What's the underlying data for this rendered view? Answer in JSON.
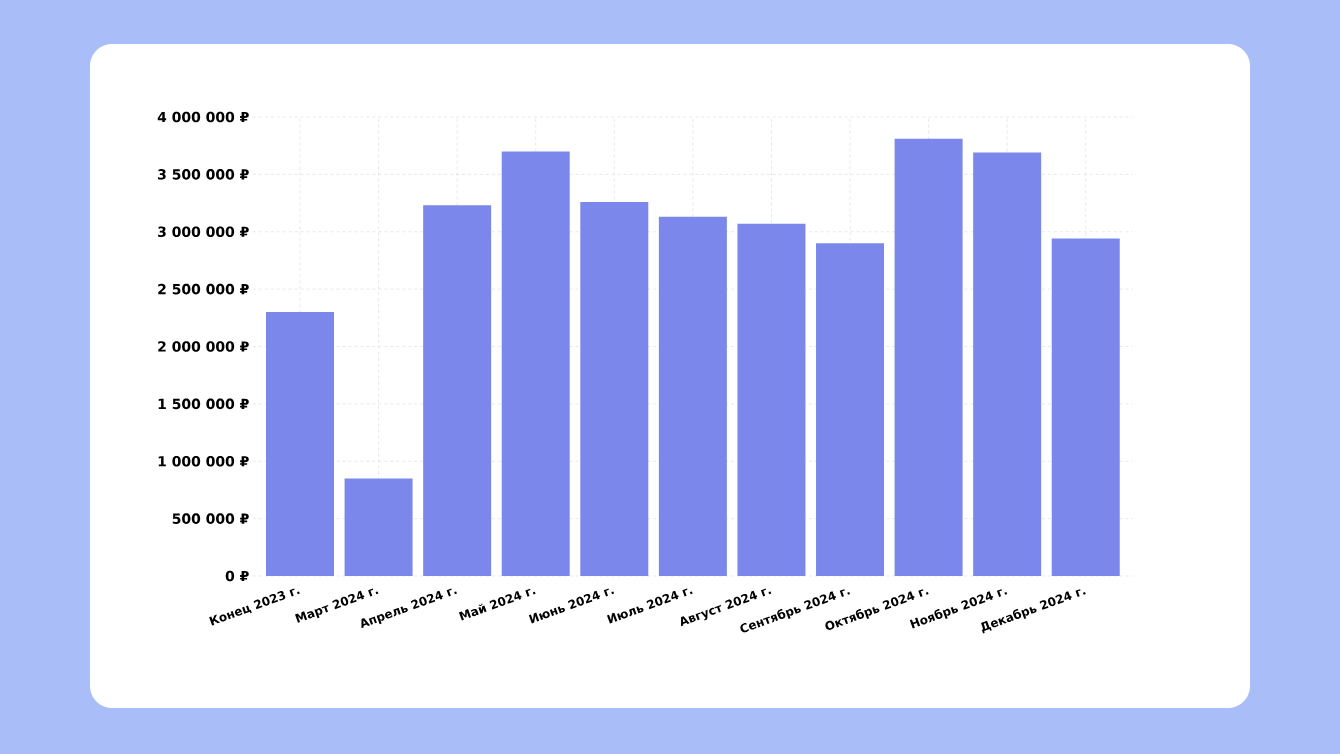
{
  "chart_data": {
    "type": "bar",
    "categories": [
      "Конец 2023 г.",
      "Март 2024 г.",
      "Апрель 2024 г.",
      "Май 2024 г.",
      "Июнь 2024 г.",
      "Июль 2024 г.",
      "Август 2024 г.",
      "Сентябрь 2024 г.",
      "Октябрь 2024 г.",
      "Ноябрь 2024 г.",
      "Декабрь 2024 г."
    ],
    "values": [
      2300000,
      850000,
      3230000,
      3700000,
      3260000,
      3130000,
      3070000,
      2900000,
      3810000,
      3690000,
      2940000
    ],
    "color": "#7b87eb",
    "ylim": [
      0,
      4000000
    ],
    "yticks": [
      {
        "value": 0,
        "label": "0 ₽"
      },
      {
        "value": 500000,
        "label": "500 000 ₽"
      },
      {
        "value": 1000000,
        "label": "1 000 000 ₽"
      },
      {
        "value": 1500000,
        "label": "1 500 000 ₽"
      },
      {
        "value": 2000000,
        "label": "2 000 000 ₽"
      },
      {
        "value": 2500000,
        "label": "2 500 000 ₽"
      },
      {
        "value": 3000000,
        "label": "3 000 000 ₽"
      },
      {
        "value": 3500000,
        "label": "3 500 000 ₽"
      },
      {
        "value": 4000000,
        "label": "4 000 000 ₽"
      }
    ],
    "grid": true
  }
}
